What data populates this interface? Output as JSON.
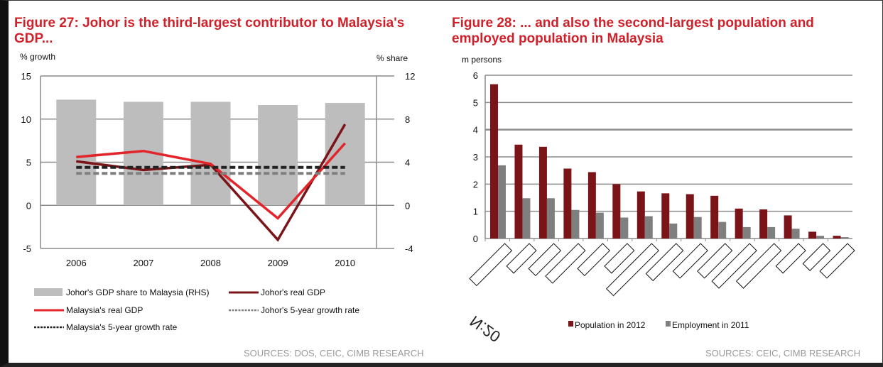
{
  "figure27": {
    "title": "Figure 27: Johor is the third-largest contributor to Malaysia's GDP...",
    "source": "SOURCES: DOS, CEIC, CIMB RESEARCH"
  },
  "figure28": {
    "title": "Figure 28: ... and also the second-largest population and employed population in Malaysia",
    "source": "SOURCES: CEIC, CIMB RESEARCH",
    "stray_mark": "N:20"
  },
  "chart_data": [
    {
      "type": "bar+line",
      "ylabel": "% growth",
      "y2label": "% share",
      "ylim": [
        -5,
        15
      ],
      "y2lim": [
        -4,
        12
      ],
      "yticks": [
        "15",
        "10",
        "5",
        "0",
        "-5"
      ],
      "y2ticks": [
        "12",
        "8",
        "4",
        "0",
        "-4"
      ],
      "categories": [
        "2006",
        "2007",
        "2008",
        "2009",
        "2010"
      ],
      "grid": true,
      "series": [
        {
          "name": "Johor's GDP share to Malaysia (RHS)",
          "type": "bar",
          "axis": "right",
          "color": "#bdbdbd",
          "values": [
            9.8,
            9.6,
            9.6,
            9.3,
            9.5
          ]
        },
        {
          "name": "Johor's real GDP",
          "type": "line",
          "color": "#7a1418",
          "values": [
            5.1,
            4.1,
            4.7,
            -4.0,
            9.4
          ]
        },
        {
          "name": "Malaysia's real GDP",
          "type": "line",
          "color": "#e2242b",
          "values": [
            5.6,
            6.3,
            4.8,
            -1.5,
            7.2
          ]
        },
        {
          "name": "Johor's 5-year growth rate",
          "type": "dashed",
          "color": "#808080",
          "values": [
            3.7,
            3.7,
            3.7,
            3.7,
            3.7
          ]
        },
        {
          "name": "Malaysia's 5-year growth rate",
          "type": "dashed",
          "color": "#222222",
          "values": [
            4.4,
            4.4,
            4.4,
            4.4,
            4.4
          ]
        }
      ],
      "legend": "bottom"
    },
    {
      "type": "bar",
      "ylabel": "m persons",
      "ylim": [
        0,
        6
      ],
      "yticks": [
        "6",
        "5",
        "4",
        "3",
        "2",
        "1",
        "0"
      ],
      "categories_redacted": 15,
      "grid": true,
      "series": [
        {
          "name": "Population in 2012",
          "color": "#7a1418",
          "values": [
            5.67,
            3.45,
            3.37,
            2.57,
            2.44,
            2.0,
            1.73,
            1.66,
            1.63,
            1.57,
            1.1,
            1.07,
            0.85,
            0.25,
            0.1
          ]
        },
        {
          "name": "Employment in 2011",
          "color": "#7f7f7f",
          "values": [
            2.69,
            1.48,
            1.48,
            1.05,
            0.95,
            0.77,
            0.82,
            0.55,
            0.79,
            0.61,
            0.42,
            0.42,
            0.36,
            0.1,
            0.05
          ]
        }
      ],
      "legend": "bottom"
    }
  ]
}
